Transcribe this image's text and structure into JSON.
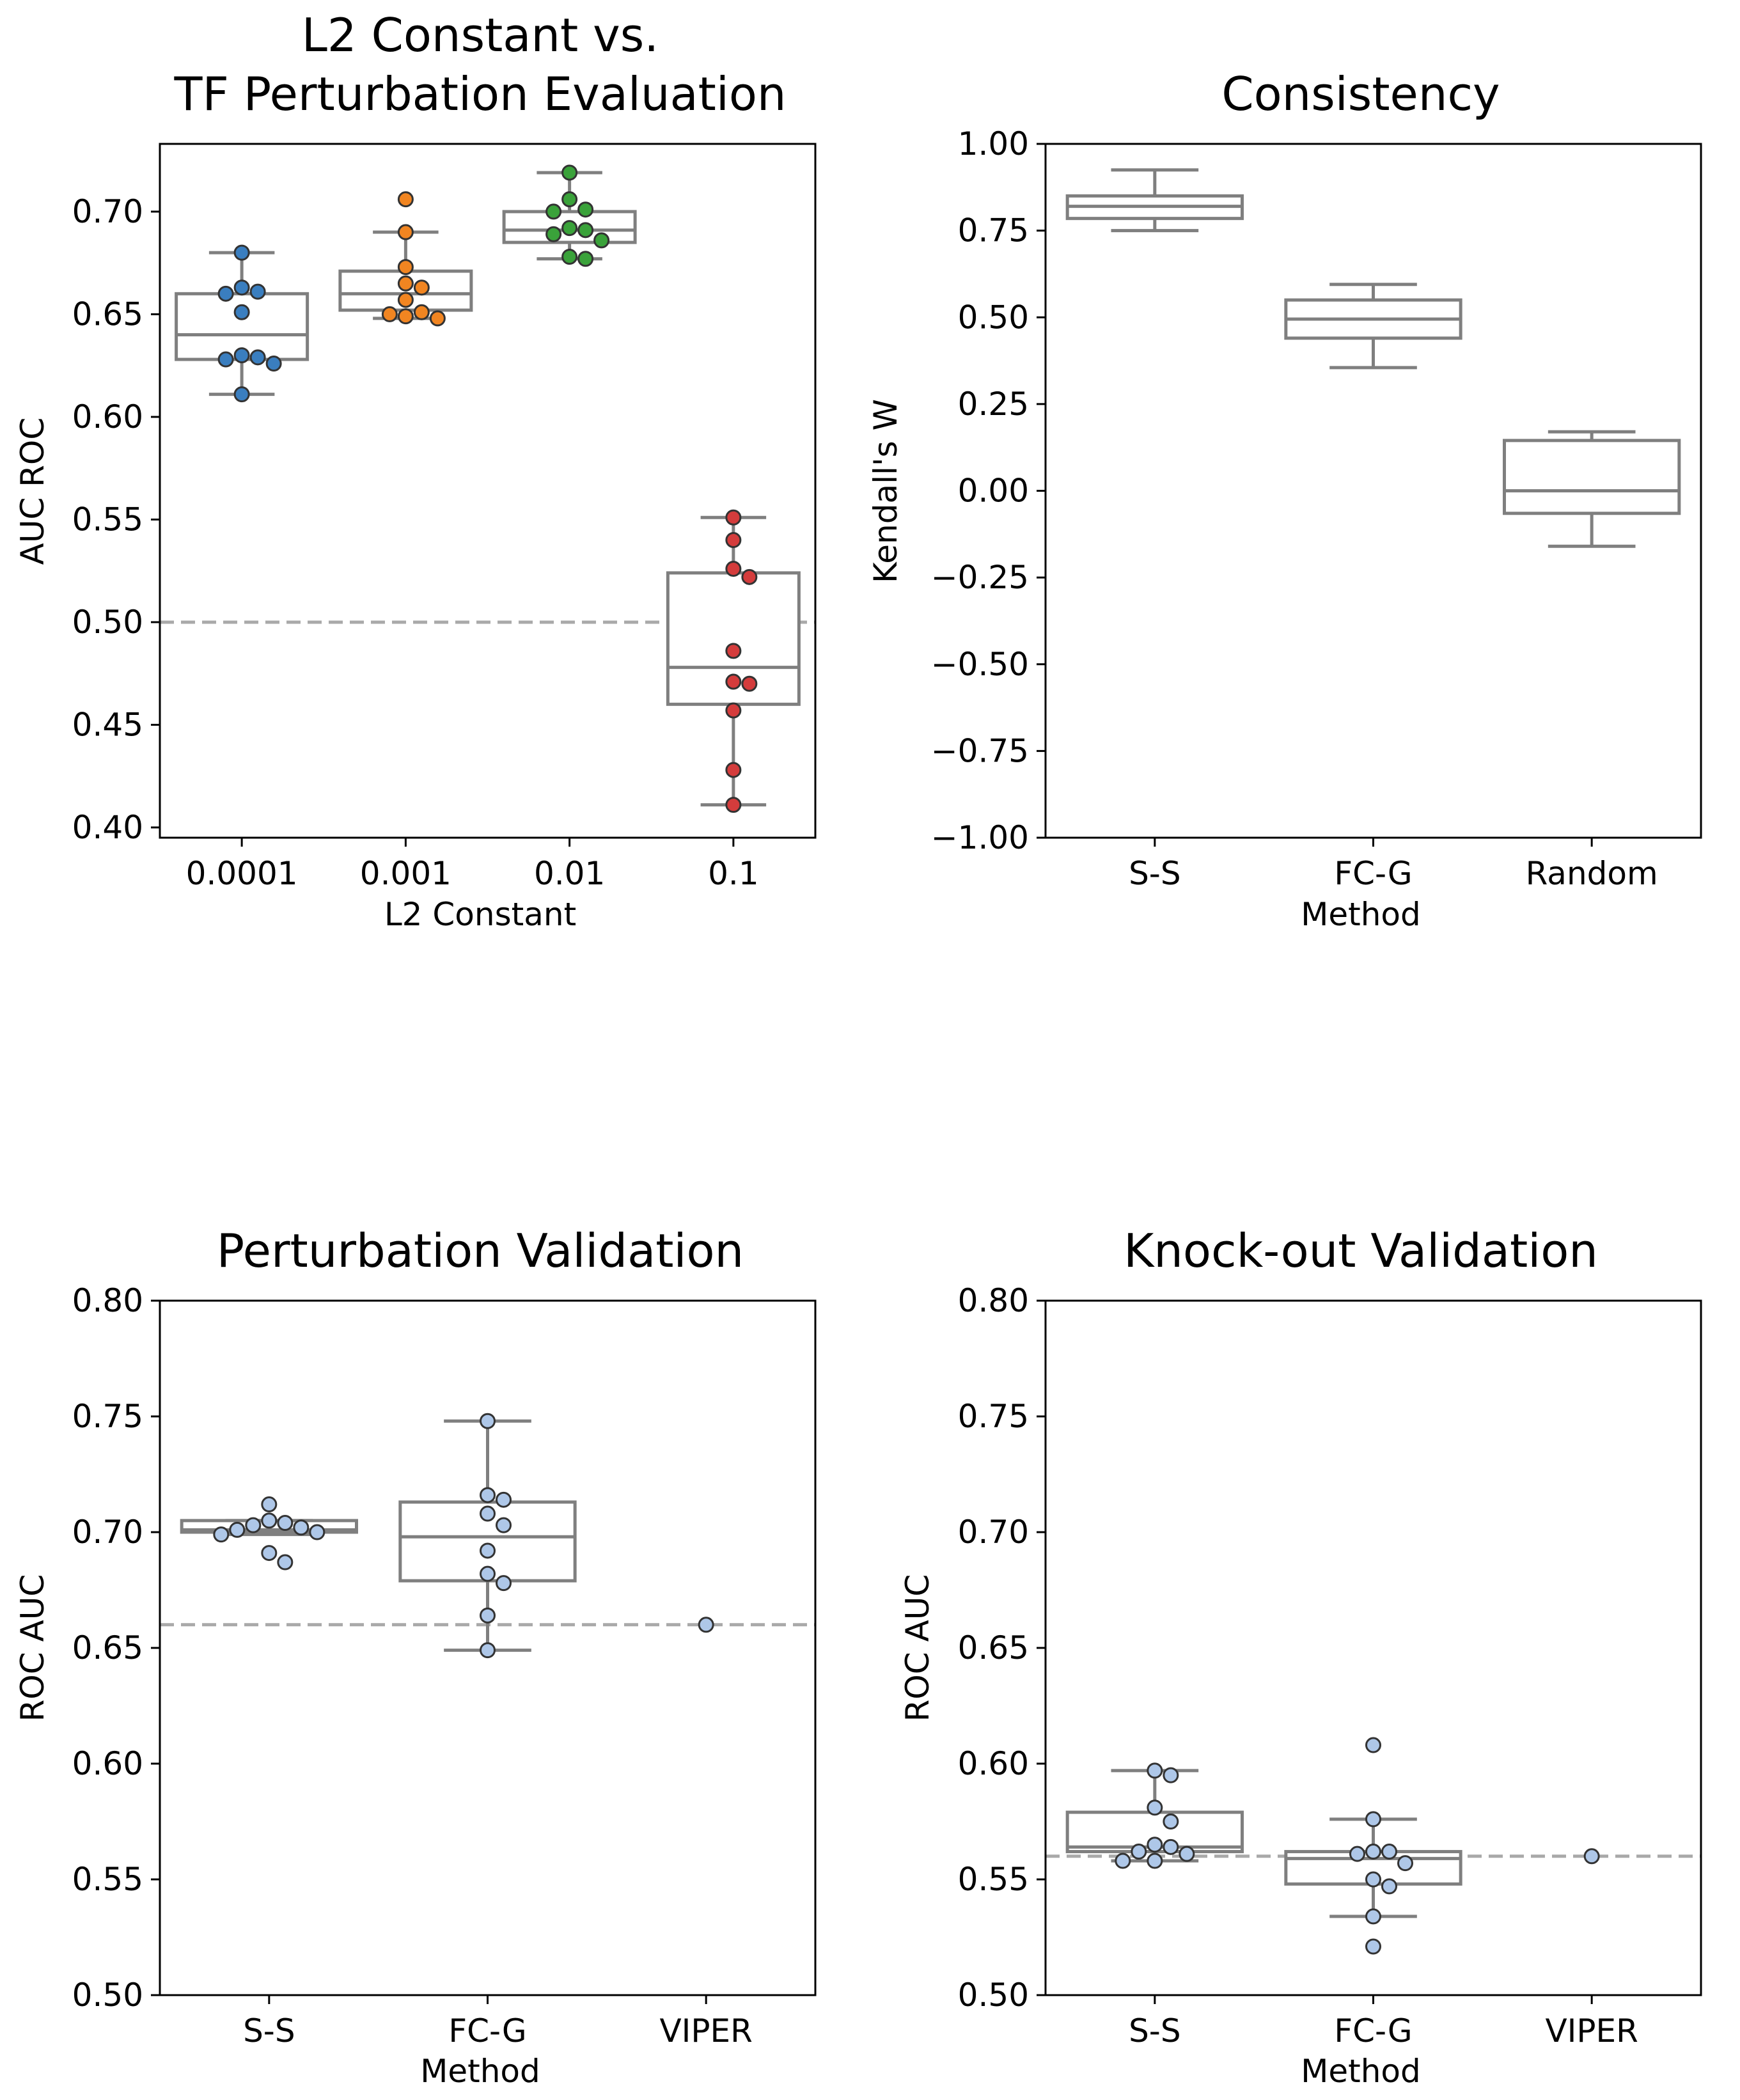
{
  "chart_data": [
    {
      "type": "box",
      "title_lines": [
        "L2 Constant vs.",
        "TF Perturbation Evaluation"
      ],
      "xlabel": "L2 Constant",
      "ylabel": "AUC ROC",
      "categories": [
        "0.0001",
        "0.001",
        "0.01",
        "0.1"
      ],
      "ylim": [
        0.395,
        0.733
      ],
      "yticks": [
        0.4,
        0.45,
        0.5,
        0.55,
        0.6,
        0.65,
        0.7
      ],
      "ytick_labels": [
        "0.40",
        "0.45",
        "0.50",
        "0.55",
        "0.60",
        "0.65",
        "0.70"
      ],
      "reference_line": 0.5,
      "point_colors": [
        "#3a7ebf",
        "#f18521",
        "#3aa23a",
        "#d43c3c"
      ],
      "boxes": [
        {
          "whislo": 0.611,
          "q1": 0.628,
          "med": 0.64,
          "q3": 0.66,
          "whishi": 0.68,
          "fliers": []
        },
        {
          "whislo": 0.648,
          "q1": 0.652,
          "med": 0.66,
          "q3": 0.671,
          "whishi": 0.69,
          "fliers": [
            0.706
          ]
        },
        {
          "whislo": 0.677,
          "q1": 0.685,
          "med": 0.691,
          "q3": 0.7,
          "whishi": 0.719,
          "fliers": []
        },
        {
          "whislo": 0.411,
          "q1": 0.46,
          "med": 0.478,
          "q3": 0.524,
          "whishi": 0.551,
          "fliers": []
        }
      ],
      "points": [
        [
          0.68,
          0.663,
          0.661,
          0.66,
          0.651,
          0.63,
          0.629,
          0.628,
          0.626,
          0.611
        ],
        [
          0.706,
          0.69,
          0.673,
          0.665,
          0.663,
          0.657,
          0.651,
          0.65,
          0.649,
          0.648
        ],
        [
          0.719,
          0.706,
          0.701,
          0.7,
          0.692,
          0.691,
          0.689,
          0.686,
          0.678,
          0.677
        ],
        [
          0.551,
          0.54,
          0.526,
          0.522,
          0.486,
          0.471,
          0.47,
          0.457,
          0.428,
          0.411
        ]
      ]
    },
    {
      "type": "box",
      "title": "Consistency",
      "xlabel": "Method",
      "ylabel": "Kendall's W",
      "categories": [
        "S-S",
        "FC-G",
        "Random"
      ],
      "ylim": [
        -1.0,
        1.0
      ],
      "yticks": [
        -1.0,
        -0.75,
        -0.5,
        -0.25,
        0.0,
        0.25,
        0.5,
        0.75,
        1.0
      ],
      "ytick_labels": [
        "−1.00",
        "−0.75",
        "−0.50",
        "−0.25",
        "0.00",
        "0.25",
        "0.50",
        "0.75",
        "1.00"
      ],
      "boxes": [
        {
          "whislo": 0.75,
          "q1": 0.785,
          "med": 0.82,
          "q3": 0.85,
          "whishi": 0.925,
          "fliers": []
        },
        {
          "whislo": 0.355,
          "q1": 0.44,
          "med": 0.495,
          "q3": 0.55,
          "whishi": 0.595,
          "fliers": []
        },
        {
          "whislo": -0.16,
          "q1": -0.065,
          "med": 0.0,
          "q3": 0.145,
          "whishi": 0.17,
          "fliers": []
        }
      ]
    },
    {
      "type": "box",
      "title": "Perturbation Validation",
      "xlabel": "Method",
      "ylabel": "ROC AUC",
      "categories": [
        "S-S",
        "FC-G",
        "VIPER"
      ],
      "ylim": [
        0.5,
        0.8
      ],
      "yticks": [
        0.5,
        0.55,
        0.6,
        0.65,
        0.7,
        0.75,
        0.8
      ],
      "ytick_labels": [
        "0.50",
        "0.55",
        "0.60",
        "0.65",
        "0.70",
        "0.75",
        "0.80"
      ],
      "reference_line": 0.66,
      "point_colors": [
        "#aec7e8",
        "#aec7e8",
        "#aec7e8"
      ],
      "boxes": [
        {
          "whislo": 0.699,
          "q1": 0.7,
          "med": 0.701,
          "q3": 0.705,
          "whishi": 0.705,
          "fliers": []
        },
        {
          "whislo": 0.649,
          "q1": 0.679,
          "med": 0.698,
          "q3": 0.713,
          "whishi": 0.748,
          "fliers": []
        },
        null
      ],
      "points": [
        [
          0.712,
          0.705,
          0.704,
          0.703,
          0.702,
          0.701,
          0.7,
          0.699,
          0.691,
          0.687
        ],
        [
          0.748,
          0.716,
          0.714,
          0.708,
          0.703,
          0.692,
          0.682,
          0.678,
          0.664,
          0.649
        ],
        [
          0.66
        ]
      ]
    },
    {
      "type": "box",
      "title": "Knock-out Validation",
      "xlabel": "Method",
      "ylabel": "ROC AUC",
      "categories": [
        "S-S",
        "FC-G",
        "VIPER"
      ],
      "ylim": [
        0.5,
        0.8
      ],
      "yticks": [
        0.5,
        0.55,
        0.6,
        0.65,
        0.7,
        0.75,
        0.8
      ],
      "ytick_labels": [
        "0.50",
        "0.55",
        "0.60",
        "0.65",
        "0.70",
        "0.75",
        "0.80"
      ],
      "reference_line": 0.56,
      "point_colors": [
        "#aec7e8",
        "#aec7e8",
        "#aec7e8"
      ],
      "boxes": [
        {
          "whislo": 0.558,
          "q1": 0.562,
          "med": 0.564,
          "q3": 0.579,
          "whishi": 0.597,
          "fliers": []
        },
        {
          "whislo": 0.534,
          "q1": 0.548,
          "med": 0.559,
          "q3": 0.562,
          "whishi": 0.576,
          "fliers": [
            0.608,
            0.521
          ]
        },
        null
      ],
      "points": [
        [
          0.597,
          0.595,
          0.581,
          0.575,
          0.565,
          0.564,
          0.562,
          0.561,
          0.558,
          0.558
        ],
        [
          0.608,
          0.576,
          0.562,
          0.562,
          0.561,
          0.557,
          0.55,
          0.547,
          0.534,
          0.521
        ],
        [
          0.56
        ]
      ]
    }
  ]
}
